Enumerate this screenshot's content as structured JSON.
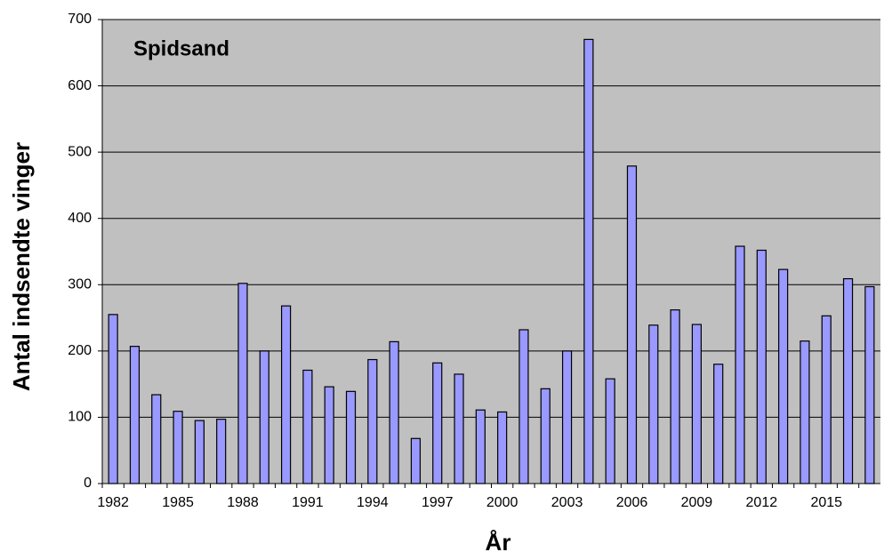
{
  "chart_data": {
    "type": "bar",
    "title": "Spidsand",
    "x_label": "År",
    "y_label": "Antal indsendte vinger",
    "categories": [
      "1982",
      null,
      null,
      "1985",
      null,
      null,
      "1988",
      null,
      null,
      "1991",
      null,
      null,
      "1994",
      null,
      null,
      "1997",
      null,
      null,
      "2000",
      null,
      null,
      "2003",
      null,
      null,
      "2006",
      null,
      null,
      "2009",
      null,
      null,
      "2012",
      null,
      null,
      "2015",
      null,
      null
    ],
    "values": [
      255,
      207,
      134,
      109,
      95,
      97,
      302,
      200,
      268,
      171,
      146,
      139,
      187,
      214,
      68,
      182,
      165,
      111,
      108,
      232,
      143,
      200,
      670,
      158,
      479,
      239,
      262,
      240,
      180,
      358,
      352,
      323,
      215,
      253,
      309,
      297
    ],
    "color": "#9999ff",
    "ylim": [
      0,
      700
    ],
    "yticks": [
      0,
      100,
      200,
      300,
      400,
      500,
      600,
      700
    ],
    "grid": true
  }
}
